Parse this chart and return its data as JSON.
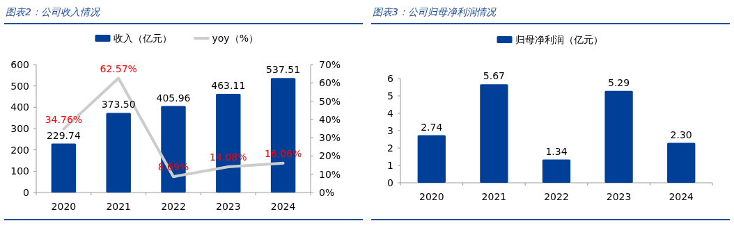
{
  "chart_data": [
    {
      "type": "bar",
      "title": "图表2：公司收入情况",
      "categories": [
        "2020",
        "2021",
        "2022",
        "2023",
        "2024"
      ],
      "ylim": [
        0,
        600
      ],
      "yticks": [
        0,
        100,
        200,
        300,
        400,
        500,
        600
      ],
      "y2lim": [
        0,
        70
      ],
      "y2ticks": [
        {
          "value": 0,
          "label": "0%"
        },
        {
          "value": 10,
          "label": "10%"
        },
        {
          "value": 20,
          "label": "20%"
        },
        {
          "value": 30,
          "label": "30%"
        },
        {
          "value": 40,
          "label": "40%"
        },
        {
          "value": 50,
          "label": "50%"
        },
        {
          "value": 60,
          "label": "60%"
        },
        {
          "value": 70,
          "label": "70%"
        }
      ],
      "legend": "top",
      "series": [
        {
          "name": "收入（亿元）",
          "color": "#003f98",
          "values": [
            229.74,
            373.5,
            405.96,
            463.11,
            537.51
          ],
          "value_labels": [
            "229.74",
            "373.50",
            "405.96",
            "463.11",
            "537.51"
          ]
        },
        {
          "name": "yoy（%）",
          "type": "line",
          "axis": "y2",
          "color": "#cccccc",
          "values": [
            34.76,
            62.57,
            8.69,
            14.08,
            16.06
          ],
          "value_labels": [
            "34.76%",
            "62.57%",
            "8.69%",
            "14.08%",
            "16.06%"
          ]
        }
      ]
    },
    {
      "type": "bar",
      "title": "图表3：公司归母净利润情况",
      "categories": [
        "2020",
        "2021",
        "2022",
        "2023",
        "2024"
      ],
      "ylim": [
        0,
        6
      ],
      "yticks": [
        0,
        1,
        2,
        3,
        4,
        5,
        6
      ],
      "legend": "top",
      "series": [
        {
          "name": "归母净利润（亿元）",
          "color": "#003f98",
          "values": [
            2.74,
            5.67,
            1.34,
            5.29,
            2.3
          ],
          "value_labels": [
            "2.74",
            "5.67",
            "1.34",
            "5.29",
            "2.30"
          ]
        }
      ]
    }
  ]
}
